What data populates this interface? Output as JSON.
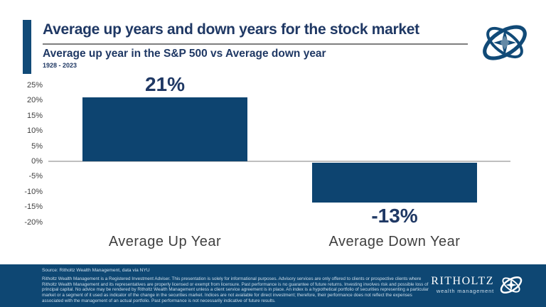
{
  "header": {
    "title": "Average up years and down years for the stock market",
    "subtitle": "Average up year in the S&P 500 vs Average down year",
    "period": "1928 - 2023"
  },
  "chart_data": {
    "type": "bar",
    "categories": [
      "Average Up Year",
      "Average Down Year"
    ],
    "values": [
      21,
      -13
    ],
    "data_labels": [
      "21%",
      "-13%"
    ],
    "y_ticks": [
      "25%",
      "20%",
      "15%",
      "10%",
      "5%",
      "0%",
      "-5%",
      "-10%",
      "-15%",
      "-20%"
    ],
    "ylim": [
      -20,
      25
    ],
    "grid": false,
    "legend": false,
    "title": "Average up years and down years for the stock market",
    "subtitle": "Average up year in the S&P 500 vs Average down year",
    "xlabel": "",
    "ylabel": ""
  },
  "footer": {
    "source": "Source: Ritholtz Wealth Management, data via NYU",
    "disclaimer": "Ritholtz Wealth Management is a Registered Investment Adviser. This presentation is solely for informational purposes. Advisory services are only offered to clients or prospective clients where Ritholtz Wealth Management and its representatives are properly licensed or exempt from licensure. Past performance is no guarantee of future returns. Investing involves risk and possible loss of principal capital. No advice may be rendered by Ritholtz Wealth Management unless a client service agreement is in place. An index is a hypothetical portfolio of securities representing a particular market or a segment of it used as indicator of the change in the securities market. Indices are not available for direct investment; therefore, their performance does not reflect the expenses associated with the management of an actual portfolio. Past performance is not necessarily indicative of future results.",
    "brand_name": "RITHOLTZ",
    "brand_sub": "wealth management"
  },
  "colors": {
    "navy_text": "#1f3864",
    "bar": "#0d4470",
    "accent": "#114a77",
    "axis_line": "#bfbfbf",
    "tick_text": "#404040",
    "category_text": "#3f3f3f",
    "footer_band": "#0e4773",
    "footer_text": "#cfdfec",
    "logo": "#114a77"
  }
}
